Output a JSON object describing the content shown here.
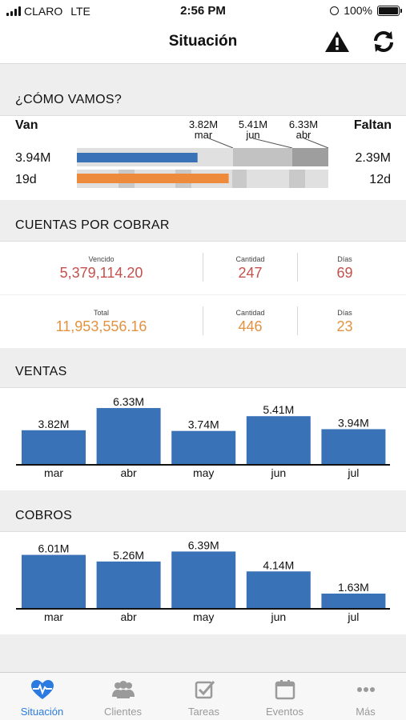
{
  "status_bar": {
    "carrier": "CLARO",
    "network": "LTE",
    "time": "2:56 PM",
    "battery": "100%"
  },
  "header": {
    "title": "Situación",
    "warning_icon": "warning-icon",
    "refresh_icon": "refresh-icon"
  },
  "como_vamos": {
    "heading": "¿CÓMO VAMOS?",
    "van_label": "Van",
    "faltan_label": "Faltan",
    "van_amount": "3.94M",
    "van_days": "19d",
    "faltan_amount": "2.39M",
    "faltan_days": "12d",
    "markers": [
      {
        "value": "3.82M",
        "month": "mar"
      },
      {
        "value": "5.41M",
        "month": "jun"
      },
      {
        "value": "6.33M",
        "month": "abr"
      }
    ],
    "amount_progress": 0.48,
    "days_progress": 0.61,
    "colors": {
      "amount": "#3a72b8",
      "days": "#ee8a3b"
    }
  },
  "cuentas": {
    "heading": "CUENTAS POR COBRAR",
    "vencido": {
      "label": "Vencido",
      "value": "5,379,114.20",
      "cantidad_label": "Cantidad",
      "cantidad": "247",
      "dias_label": "Días",
      "dias": "69"
    },
    "total": {
      "label": "Total",
      "value": "11,953,556.16",
      "cantidad_label": "Cantidad",
      "cantidad": "446",
      "dias_label": "Días",
      "dias": "23"
    }
  },
  "ventas": {
    "heading": "VENTAS"
  },
  "cobros": {
    "heading": "COBROS"
  },
  "chart_data": [
    {
      "type": "bar",
      "categories": [
        "mar",
        "abr",
        "may",
        "jun",
        "jul"
      ],
      "values": [
        3.82,
        6.33,
        3.74,
        5.41,
        3.94
      ],
      "labels": [
        "3.82M",
        "6.33M",
        "3.74M",
        "5.41M",
        "3.94M"
      ],
      "title": "",
      "xlabel": "",
      "ylabel": "",
      "ylim": [
        0,
        7
      ],
      "color": "#3a72b8"
    },
    {
      "type": "bar",
      "categories": [
        "mar",
        "abr",
        "may",
        "jun",
        "jul"
      ],
      "values": [
        6.01,
        5.26,
        6.39,
        4.14,
        1.63
      ],
      "labels": [
        "6.01M",
        "5.26M",
        "6.39M",
        "4.14M",
        "1.63M"
      ],
      "title": "",
      "xlabel": "",
      "ylabel": "",
      "ylim": [
        0,
        7
      ],
      "color": "#3a72b8"
    }
  ],
  "tabs": [
    {
      "label": "Situación",
      "icon": "heartbeat-icon",
      "active": true
    },
    {
      "label": "Clientes",
      "icon": "users-icon",
      "active": false
    },
    {
      "label": "Tareas",
      "icon": "checkbox-icon",
      "active": false
    },
    {
      "label": "Eventos",
      "icon": "calendar-icon",
      "active": false
    },
    {
      "label": "Más",
      "icon": "more-icon",
      "active": false
    }
  ]
}
